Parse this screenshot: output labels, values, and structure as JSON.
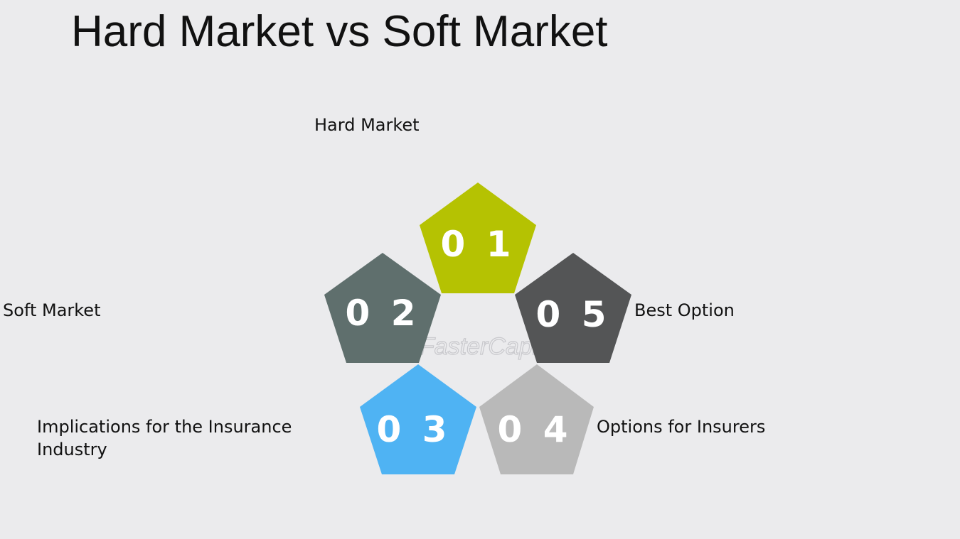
{
  "title": "Hard Market vs Soft Market",
  "watermark": "FasterCapital",
  "steps": [
    {
      "number": "0 1",
      "label": "Hard Market",
      "color": "#b5c202"
    },
    {
      "number": "0 2",
      "label": "Soft Market",
      "color": "#5f6f6d"
    },
    {
      "number": "0 3",
      "label": "Implications for the Insurance Industry",
      "color": "#4fb3f3"
    },
    {
      "number": "0 4",
      "label": "Options for Insurers",
      "color": "#b9b9b9"
    },
    {
      "number": "0 5",
      "label": "Best Option",
      "color": "#545556"
    }
  ]
}
